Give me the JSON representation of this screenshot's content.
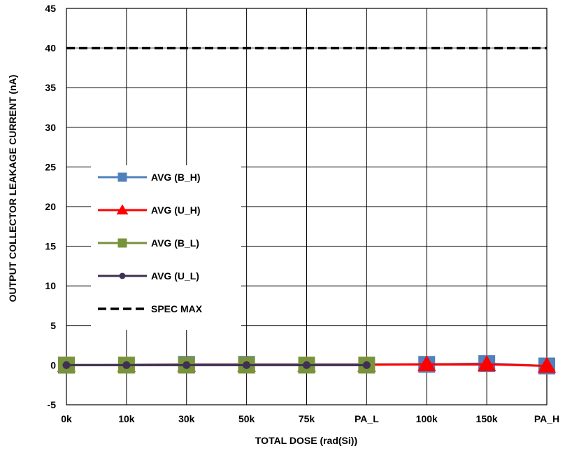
{
  "chart_data": {
    "type": "line",
    "title": "",
    "xlabel": "TOTAL DOSE (rad(Si))",
    "ylabel": "OUTPUT COLLECTOR LEAKAGE CURRENT (nA)",
    "categories": [
      "0k",
      "10k",
      "30k",
      "50k",
      "75k",
      "PA_L",
      "100k",
      "150k",
      "PA_H"
    ],
    "ylim": [
      -5,
      45
    ],
    "yticks": [
      -5,
      0,
      5,
      10,
      15,
      20,
      25,
      30,
      35,
      40,
      45
    ],
    "ytick_labels": [
      "-5",
      "0",
      "5",
      "10",
      "15",
      "20",
      "25",
      "30",
      "35",
      "40",
      "45"
    ],
    "grid": true,
    "legend_position": "left-middle",
    "series": [
      {
        "name": "AVG (B_H)",
        "color": "#4F81BD",
        "marker": "square",
        "values": [
          0.0,
          null,
          0.1,
          0.1,
          null,
          null,
          0.1,
          0.2,
          -0.1
        ]
      },
      {
        "name": "AVG (U_H)",
        "color": "#FF0000",
        "marker": "triangle",
        "values": [
          0.0,
          0.0,
          0.05,
          0.05,
          0.05,
          0.05,
          0.1,
          0.1,
          -0.1
        ]
      },
      {
        "name": "AVG (B_L)",
        "color": "#77933C",
        "marker": "square",
        "values": [
          0.0,
          0.0,
          0.0,
          0.0,
          0.0,
          0.0,
          null,
          null,
          null
        ]
      },
      {
        "name": "AVG (U_L)",
        "color": "#403152",
        "marker": "circle",
        "values": [
          0.0,
          0.0,
          0.0,
          0.0,
          0.0,
          0.0,
          null,
          null,
          null
        ]
      },
      {
        "name": "SPEC MAX",
        "color": "#000000",
        "marker": "none",
        "dashed": true,
        "values": [
          40,
          40,
          40,
          40,
          40,
          40,
          40,
          40,
          40
        ]
      }
    ]
  }
}
